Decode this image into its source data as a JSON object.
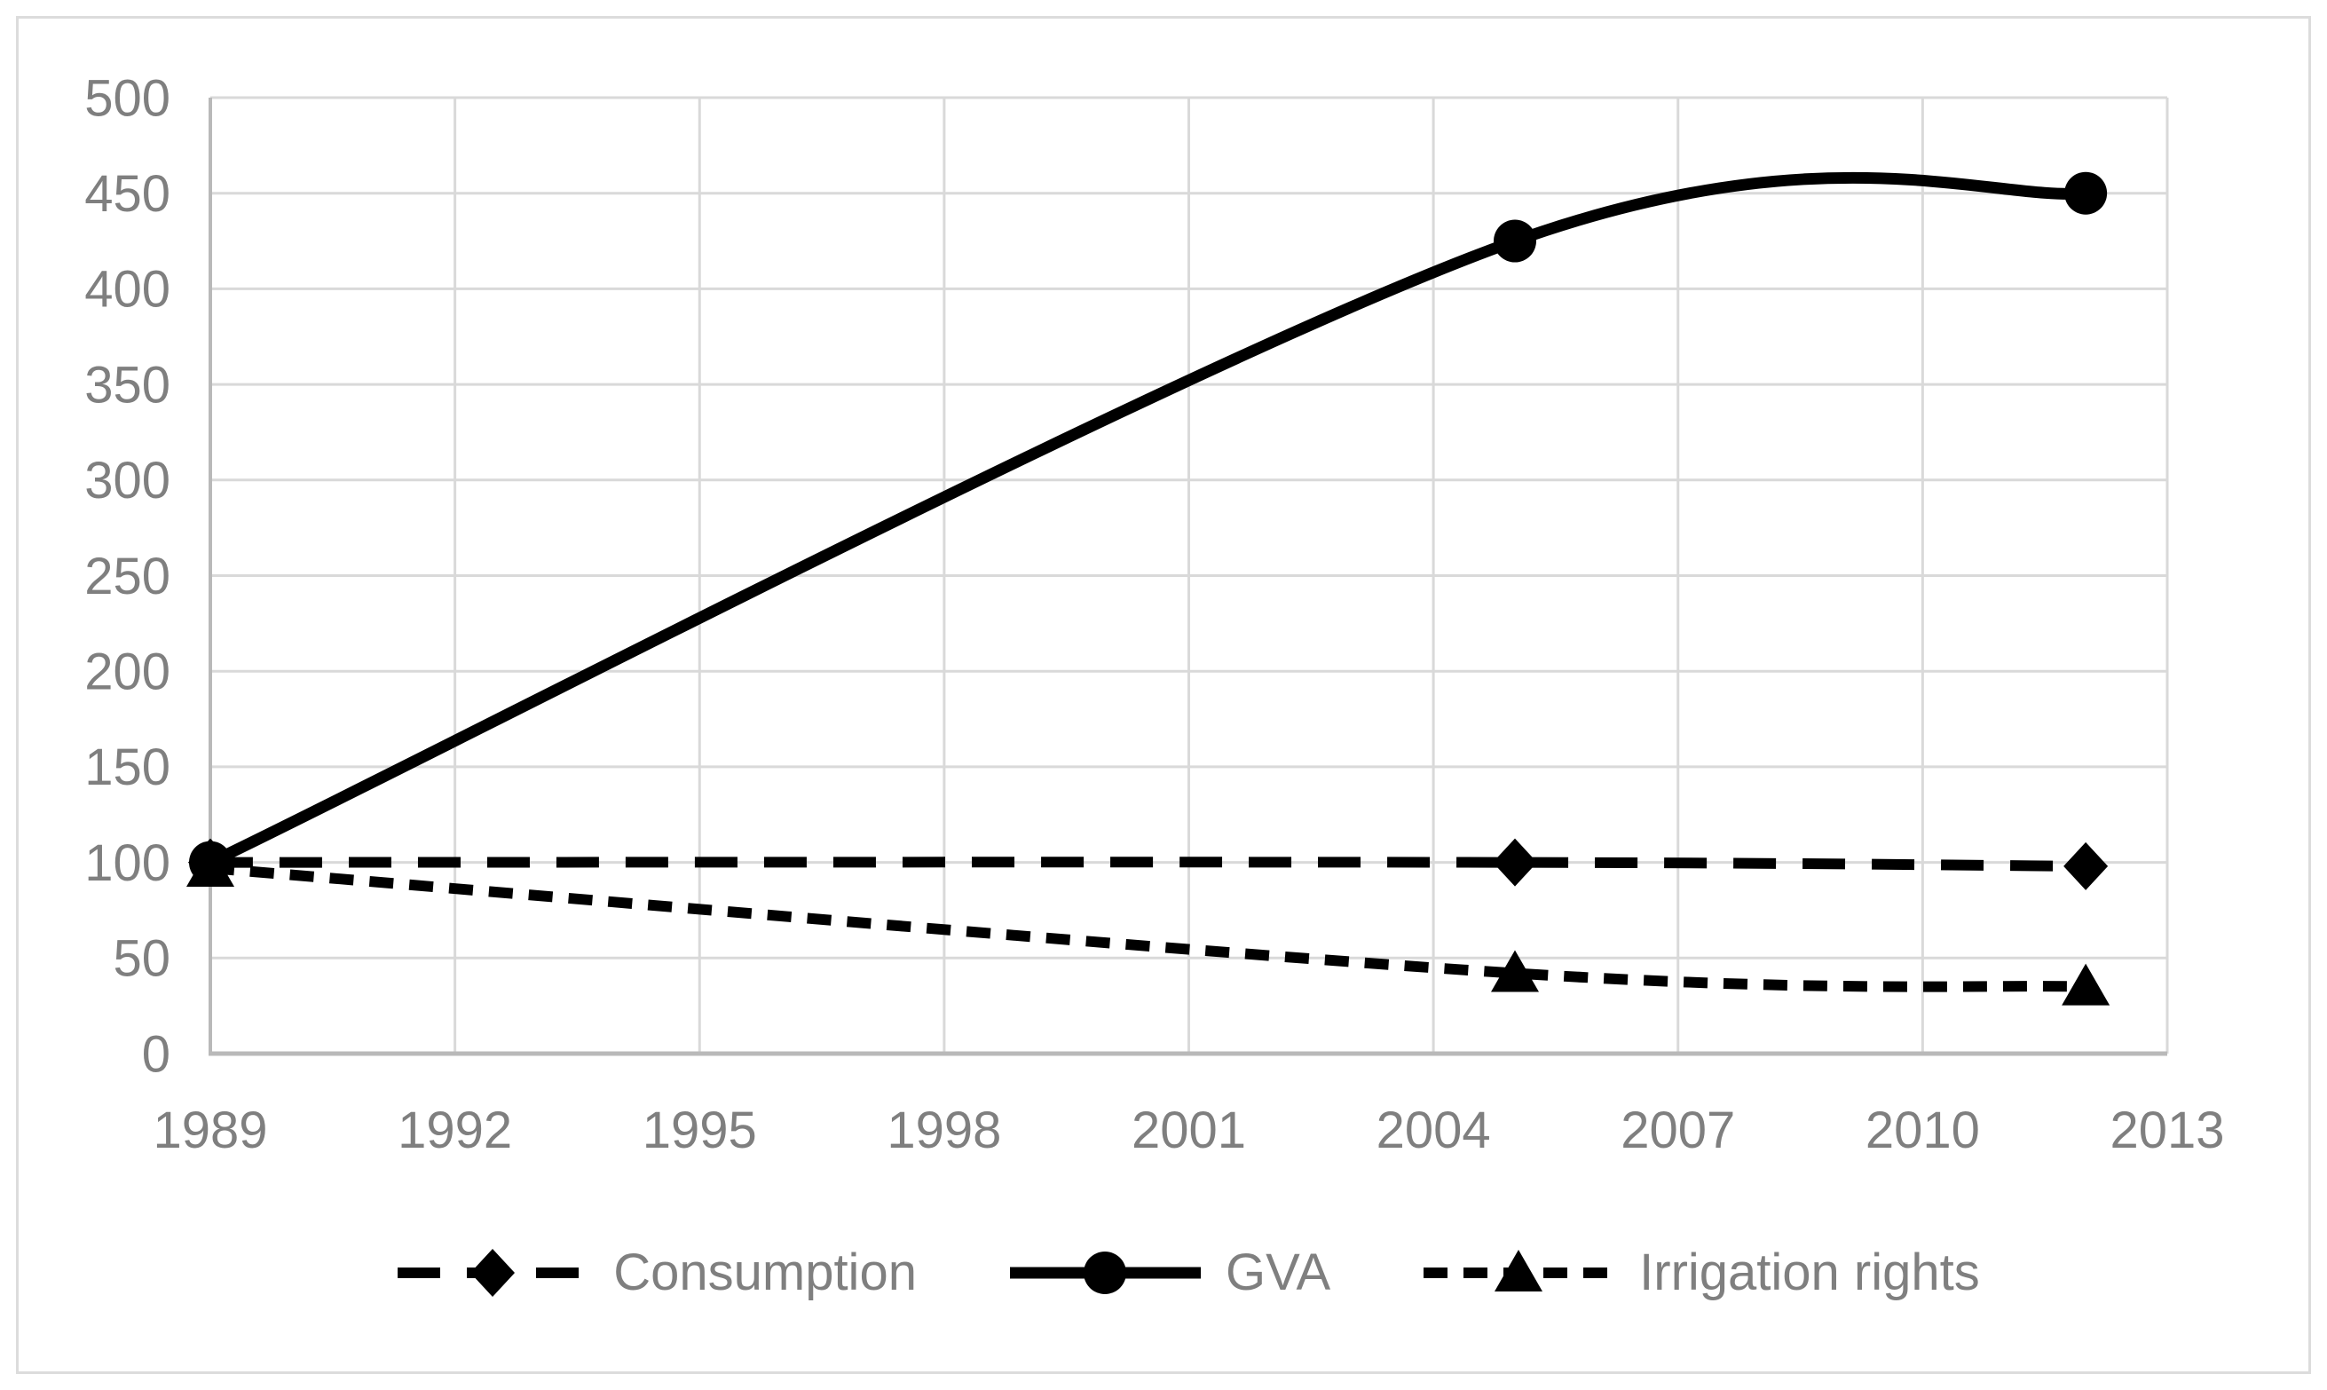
{
  "figure": {
    "background": "#ffffff",
    "border_color": "#dcdcdc"
  },
  "chart_data": {
    "type": "line",
    "title": "",
    "xlabel": "",
    "ylabel": "",
    "x": [
      1989,
      2005,
      2012
    ],
    "series": [
      {
        "name": "Consumption",
        "values": [
          100,
          100,
          98
        ],
        "marker": "diamond",
        "line_style": "long-dash"
      },
      {
        "name": "GVA",
        "values": [
          100,
          425,
          450
        ],
        "marker": "circle",
        "line_style": "solid"
      },
      {
        "name": "Irrigation rights",
        "values": [
          97,
          42,
          35
        ],
        "marker": "triangle",
        "line_style": "short-dash"
      }
    ],
    "series_color": "#000000",
    "smooth": true,
    "xlim": [
      1989,
      2013
    ],
    "ylim": [
      0,
      500
    ],
    "x_ticks": [
      1989,
      1992,
      1995,
      1998,
      2001,
      2004,
      2007,
      2010,
      2013
    ],
    "y_ticks": [
      0,
      50,
      100,
      150,
      200,
      250,
      300,
      350,
      400,
      450,
      500
    ],
    "grid": true,
    "legend_position": "bottom",
    "colors": {
      "grid": "#d9d9d9",
      "axis": "#b9b9b9",
      "tick_label": "#7f7f7f"
    }
  }
}
